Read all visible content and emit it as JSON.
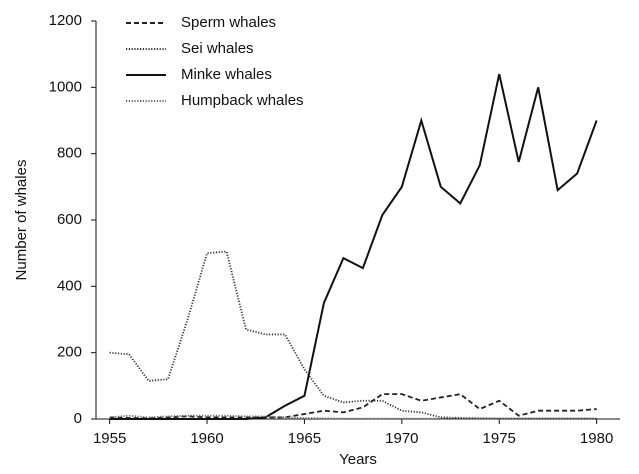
{
  "chart_data": {
    "type": "line",
    "x_label": "Years",
    "y_label": "Number of whales",
    "x": [
      1955,
      1956,
      1957,
      1958,
      1959,
      1960,
      1961,
      1962,
      1963,
      1964,
      1965,
      1966,
      1967,
      1968,
      1969,
      1970,
      1971,
      1972,
      1973,
      1974,
      1975,
      1976,
      1977,
      1978,
      1979,
      1980
    ],
    "series": [
      {
        "name": "Sperm whales",
        "color": "#222222",
        "dash": "dashed",
        "values": [
          5,
          3,
          2,
          5,
          8,
          5,
          5,
          5,
          5,
          5,
          15,
          25,
          20,
          35,
          75,
          75,
          55,
          65,
          75,
          30,
          55,
          10,
          25,
          25,
          25,
          30
        ]
      },
      {
        "name": "Sei whales",
        "color": "#333333",
        "dash": "dotted",
        "values": [
          200,
          195,
          115,
          120,
          300,
          500,
          505,
          270,
          255,
          255,
          150,
          70,
          50,
          55,
          55,
          25,
          20,
          5,
          3,
          2,
          1,
          1,
          1,
          1,
          1,
          1
        ]
      },
      {
        "name": "Minke whales",
        "color": "#111111",
        "dash": "solid",
        "values": [
          0,
          0,
          0,
          0,
          0,
          0,
          0,
          0,
          5,
          40,
          70,
          350,
          485,
          455,
          615,
          700,
          900,
          700,
          650,
          765,
          1040,
          775,
          1000,
          690,
          740,
          900
        ]
      },
      {
        "name": "Humpback whales",
        "color": "#666666",
        "dash": "dotted",
        "values": [
          5,
          10,
          5,
          8,
          10,
          10,
          10,
          8,
          8,
          5,
          3,
          2,
          1,
          1,
          1,
          1,
          1,
          1,
          1,
          1,
          1,
          1,
          1,
          1,
          1,
          1
        ]
      }
    ],
    "xlim": [
      1954.3,
      1981.2
    ],
    "xticks": [
      1955,
      1960,
      1965,
      1970,
      1975,
      1980
    ],
    "ylim": [
      0,
      1200
    ],
    "yticks": [
      0,
      200,
      400,
      600,
      800,
      1000,
      1200
    ],
    "grid": false,
    "legend": "upper-left"
  }
}
